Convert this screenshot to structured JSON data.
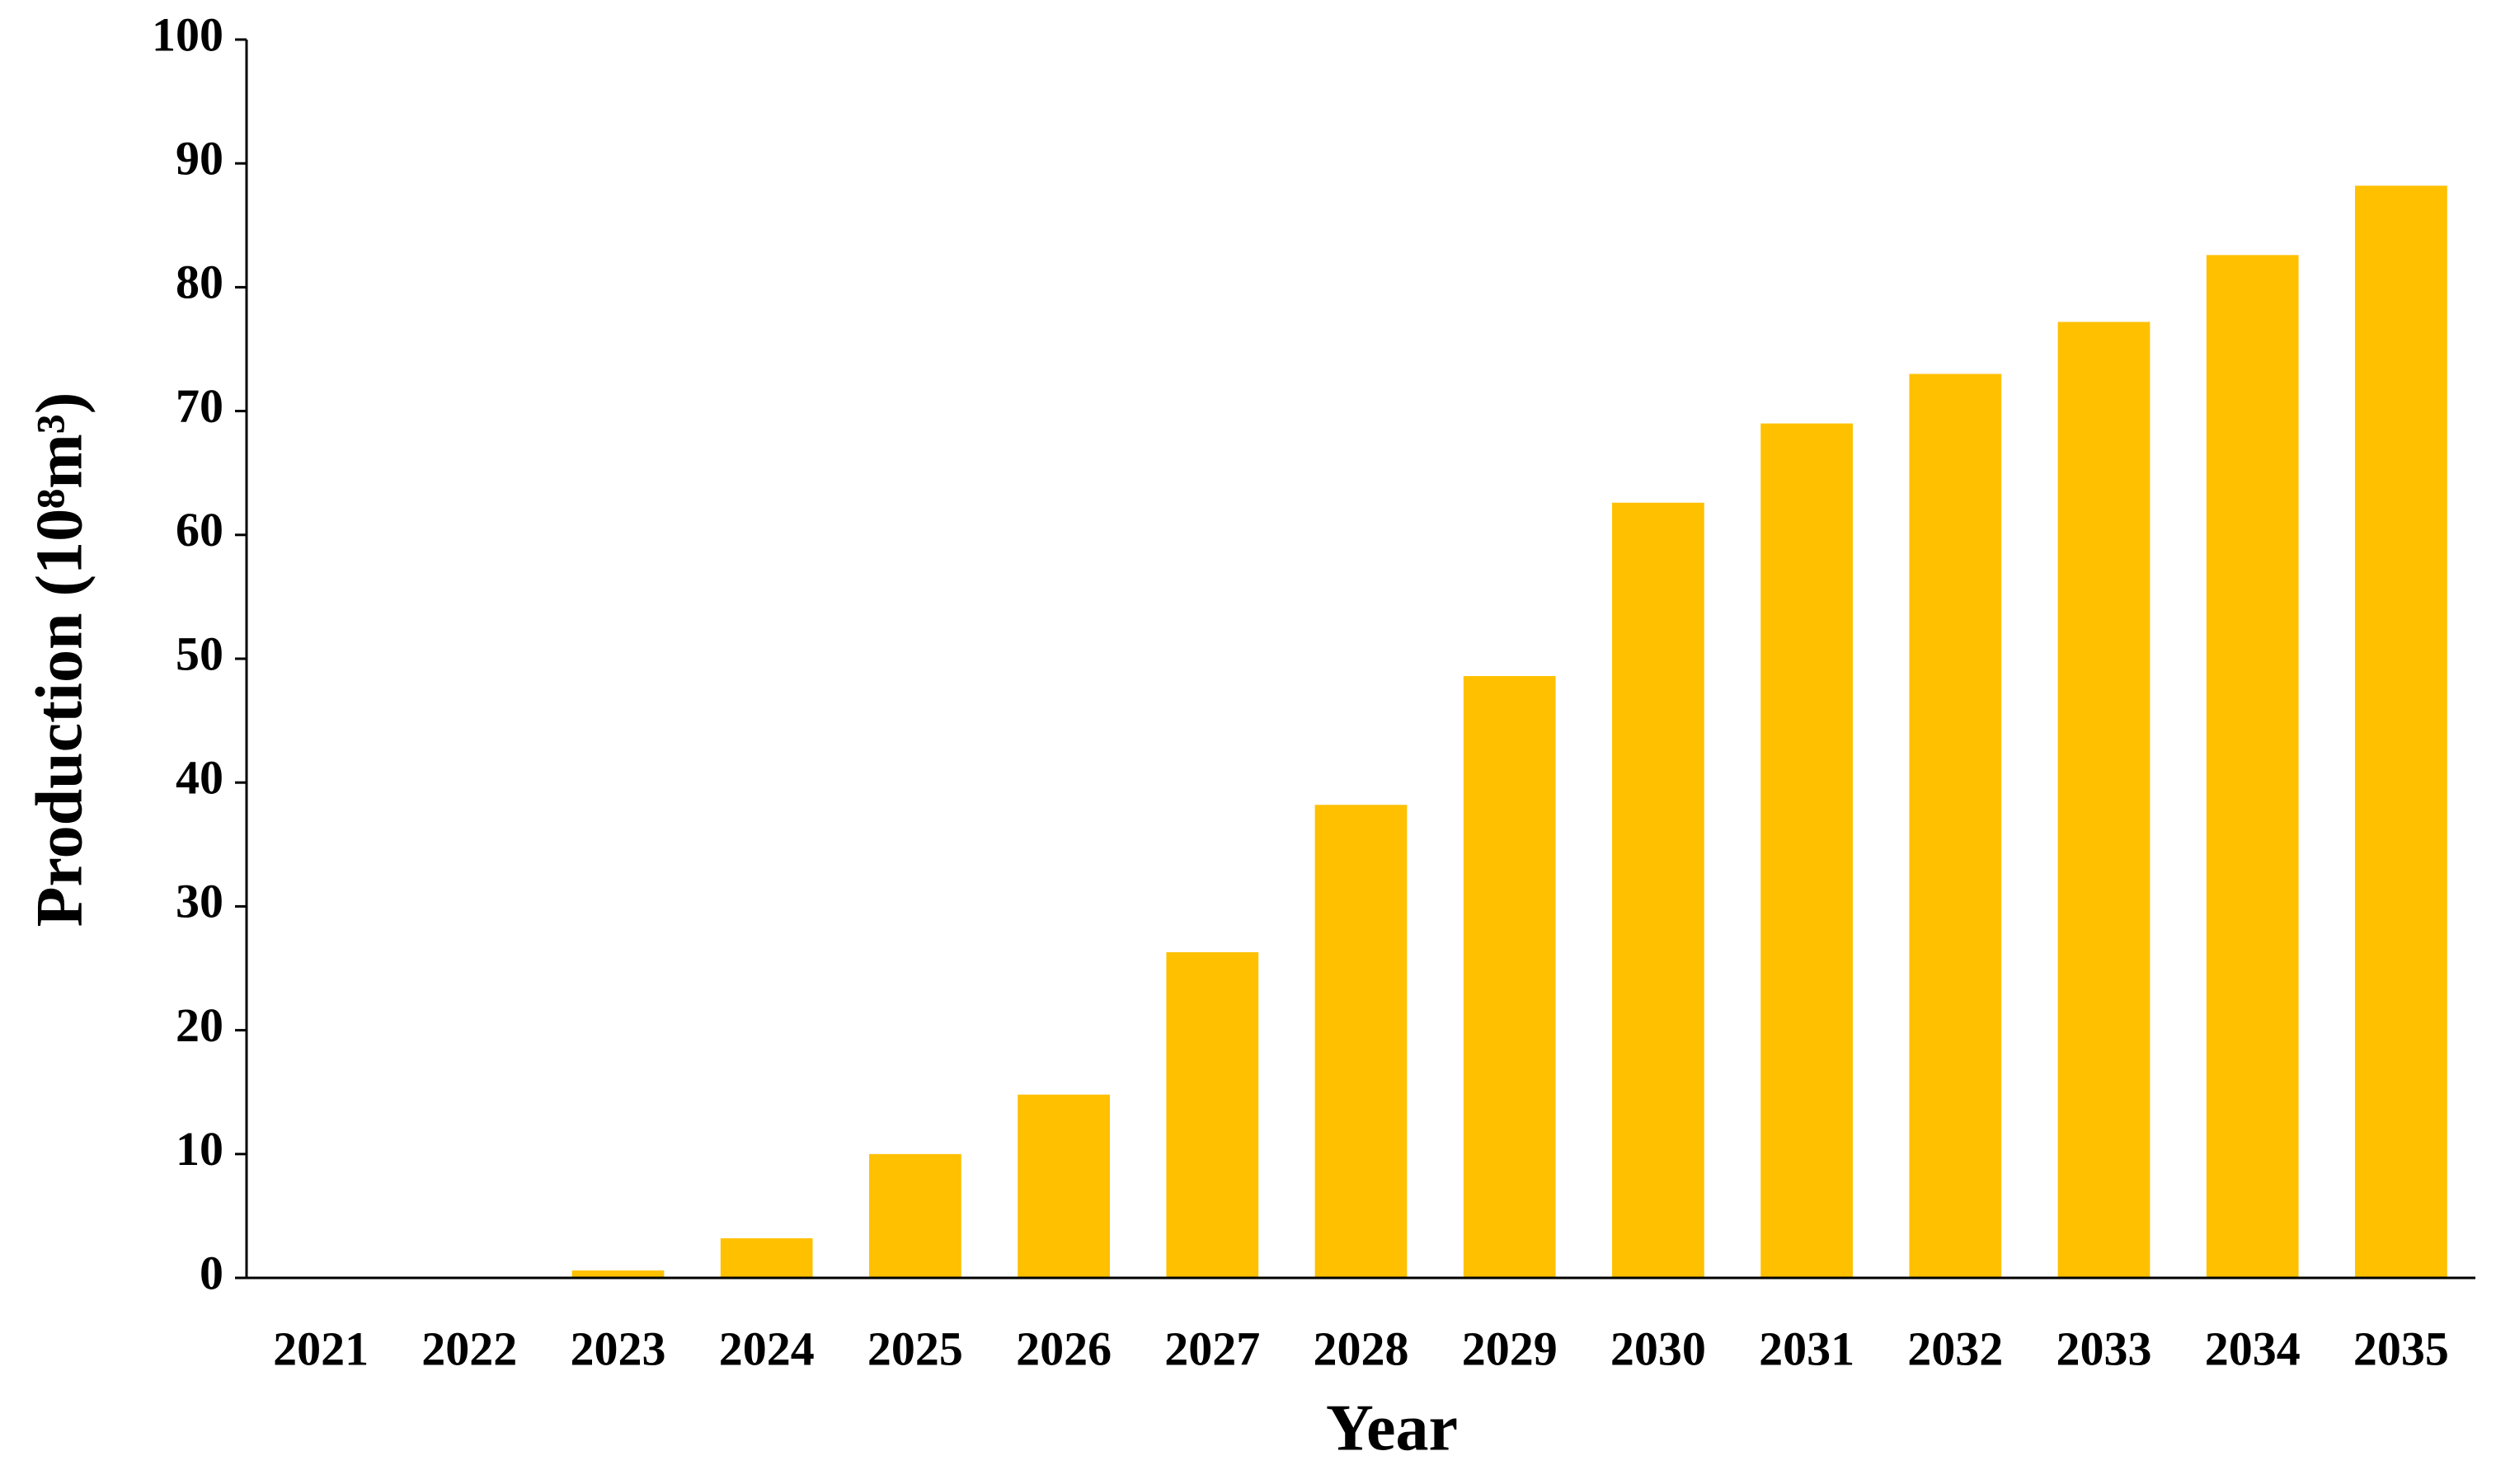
{
  "chart_data": {
    "type": "bar",
    "x_label": "Year",
    "y_label": "Production (10⁸m³)",
    "categories": [
      "2021",
      "2022",
      "2023",
      "2024",
      "2025",
      "2026",
      "2027",
      "2028",
      "2029",
      "2030",
      "2031",
      "2032",
      "2033",
      "2034",
      "2035"
    ],
    "values": [
      0,
      0,
      0.6,
      3.2,
      10.0,
      14.8,
      26.3,
      38.2,
      48.6,
      62.6,
      69.0,
      73.0,
      77.2,
      82.6,
      88.2
    ],
    "color": "#ffc000",
    "ylim": [
      0,
      100
    ],
    "yticks": [
      0,
      10,
      20,
      30,
      40,
      50,
      60,
      70,
      80,
      90,
      100
    ],
    "grid": false
  }
}
